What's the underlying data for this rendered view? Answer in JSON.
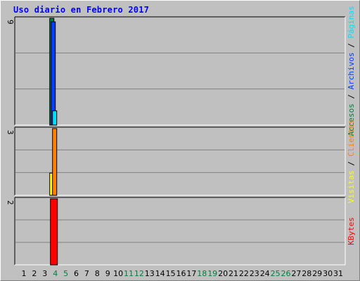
{
  "title": "Uso diario en Febrero 2017",
  "colors": {
    "background": "#c0c0c0",
    "title": "#0000ff",
    "weekday_label": "#000000",
    "weekend_label": "#007f3f",
    "accesos": "#008040",
    "archivos": "#0040ff",
    "paginas": "#00e0ff",
    "visitas": "#ffff00",
    "clientes": "#ff8000",
    "kbytes": "#ff0000"
  },
  "chart_data": {
    "type": "bar",
    "title": "Uso diario en Febrero 2017",
    "x": [
      "1",
      "2",
      "3",
      "4",
      "5",
      "6",
      "7",
      "8",
      "9",
      "10",
      "11",
      "12",
      "13",
      "14",
      "15",
      "16",
      "17",
      "18",
      "19",
      "20",
      "21",
      "22",
      "23",
      "24",
      "25",
      "26",
      "27",
      "28",
      "29",
      "30",
      "31"
    ],
    "weekend_days": [
      "4",
      "5",
      "11",
      "12",
      "18",
      "19",
      "25",
      "26"
    ],
    "panels": [
      {
        "name": "top",
        "ymax_label": "9",
        "ymax": 9,
        "right_label": [
          {
            "text": "Accesos",
            "color_key": "accesos"
          },
          {
            "text": " / ",
            "color_key": "weekday_label"
          },
          {
            "text": "Archivos",
            "color_key": "archivos"
          },
          {
            "text": " / ",
            "color_key": "weekday_label"
          },
          {
            "text": "Páginas",
            "color_key": "paginas"
          }
        ],
        "series": [
          {
            "name": "Accesos",
            "color_key": "accesos",
            "values": {
              "4": 9
            }
          },
          {
            "name": "Archivos",
            "color_key": "archivos",
            "values": {
              "4": 8.7
            }
          },
          {
            "name": "Páginas",
            "color_key": "paginas",
            "values": {
              "4": 1.2
            }
          }
        ]
      },
      {
        "name": "middle",
        "ymax_label": "3",
        "ymax": 3,
        "right_label": [
          {
            "text": "Visitas",
            "color_key": "visitas"
          },
          {
            "text": " / ",
            "color_key": "weekday_label"
          },
          {
            "text": "Clientes",
            "color_key": "clientes"
          }
        ],
        "series": [
          {
            "name": "Visitas",
            "color_key": "visitas",
            "values": {
              "4": 1
            }
          },
          {
            "name": "Clientes",
            "color_key": "clientes",
            "values": {
              "4": 3
            }
          }
        ]
      },
      {
        "name": "bottom",
        "ymax_label": "2",
        "ymax": 2,
        "right_label": [
          {
            "text": "KBytes",
            "color_key": "kbytes"
          }
        ],
        "series": [
          {
            "name": "KBytes",
            "color_key": "kbytes",
            "values": {
              "4": 2
            }
          }
        ]
      }
    ]
  }
}
